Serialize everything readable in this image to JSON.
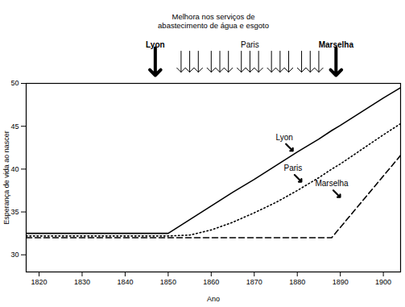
{
  "chart_data": {
    "type": "line",
    "title": "Melhora nos serviços de\nabastecimento de água e esgoto",
    "x_label": "Ano",
    "y_label": "Esperança de vida ao nascer",
    "x": [
      1817,
      1820,
      1830,
      1840,
      1850,
      1855,
      1860,
      1865,
      1870,
      1875,
      1880,
      1885,
      1888,
      1890,
      1895,
      1900,
      1904
    ],
    "series": [
      {
        "name": "Lyon",
        "color": "#000000",
        "line_style": "solid",
        "values": [
          32.5,
          32.5,
          32.5,
          32.5,
          32.5,
          34.1,
          35.7,
          37.3,
          38.8,
          40.4,
          42.0,
          43.5,
          44.5,
          45.1,
          46.7,
          48.3,
          49.5
        ],
        "label_x": 1877,
        "label_y": 43.3
      },
      {
        "name": "Paris",
        "color": "#000000",
        "line_style": "dotted",
        "values": [
          32.2,
          32.2,
          32.2,
          32.2,
          32.2,
          32.3,
          32.9,
          33.8,
          34.9,
          36.1,
          37.5,
          39.0,
          40.0,
          40.6,
          42.3,
          44.0,
          45.3
        ],
        "label_x": 1879,
        "label_y": 39.7
      },
      {
        "name": "Marselha",
        "color": "#000000",
        "line_style": "dashed",
        "values": [
          32.0,
          32.0,
          32.0,
          32.0,
          32.0,
          32.0,
          32.0,
          32.0,
          32.0,
          32.0,
          32.0,
          32.0,
          32.0,
          33.2,
          36.2,
          39.2,
          41.6
        ],
        "label_x": 1888,
        "label_y": 37.9
      }
    ],
    "interventions": [
      {
        "name": "Lyon",
        "years": [
          1847
        ]
      },
      {
        "name": "Paris",
        "years": [
          1853,
          1855,
          1857,
          1860,
          1862,
          1864,
          1867,
          1869,
          1871,
          1874,
          1876,
          1878,
          1881,
          1883,
          1885
        ]
      },
      {
        "name": "Marselha",
        "years": [
          1889
        ]
      }
    ],
    "xlim": [
      1817,
      1904
    ],
    "ylim": [
      28,
      50
    ],
    "xticks": [
      1820,
      1830,
      1840,
      1850,
      1860,
      1870,
      1880,
      1890,
      1900
    ],
    "yticks": [
      30,
      35,
      40,
      45,
      50
    ],
    "grid": false
  }
}
